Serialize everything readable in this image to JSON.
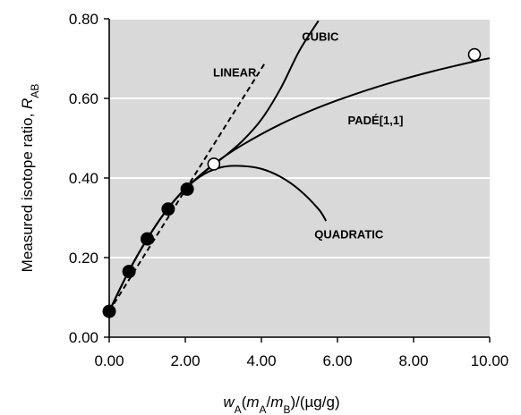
{
  "chart_data": {
    "type": "scatter",
    "title": "",
    "xlabel": {
      "parts": [
        {
          "text": "w",
          "italic": true
        },
        {
          "text": "A",
          "sub": true
        },
        {
          "text": "("
        },
        {
          "text": "m",
          "italic": true
        },
        {
          "text": "A",
          "sub": true
        },
        {
          "text": "/"
        },
        {
          "text": "m",
          "italic": true
        },
        {
          "text": "B",
          "sub": true
        },
        {
          "text": ")/(µg/g)"
        }
      ]
    },
    "ylabel": {
      "parts": [
        {
          "text": "Measured isotope ratio, "
        },
        {
          "text": "R",
          "italic": true
        },
        {
          "text": "AB",
          "sub": true
        }
      ]
    },
    "xlim": [
      0,
      10
    ],
    "ylim": [
      0,
      0.8
    ],
    "x_ticks": [
      "0.00",
      "2.00",
      "4.00",
      "6.00",
      "8.00",
      "10.00"
    ],
    "y_ticks": [
      "0.00",
      "0.20",
      "0.40",
      "0.60",
      "0.80"
    ],
    "x_tick_values": [
      0,
      2,
      4,
      6,
      8,
      10
    ],
    "y_tick_values": [
      0,
      0.2,
      0.4,
      0.6,
      0.8
    ],
    "grid": "horizontal",
    "background_color": "#d9d9d9",
    "points_filled": {
      "x": [
        0.0,
        0.52,
        1.0,
        1.55,
        2.05
      ],
      "y": [
        0.065,
        0.165,
        0.247,
        0.322,
        0.372
      ]
    },
    "points_open": {
      "x": [
        2.75,
        9.6
      ],
      "y": [
        0.435,
        0.71
      ]
    },
    "series": [
      {
        "name": "LINEAR",
        "style": "dashed",
        "x": [
          0.0,
          4.1
        ],
        "y": [
          0.065,
          0.69
        ]
      },
      {
        "name": "CUBIC",
        "style": "solid",
        "x": [
          0.0,
          0.5,
          1.0,
          1.5,
          2.0,
          2.5,
          3.0,
          3.5,
          4.0,
          4.5,
          5.0,
          5.5
        ],
        "y": [
          0.065,
          0.163,
          0.247,
          0.318,
          0.373,
          0.415,
          0.452,
          0.493,
          0.547,
          0.624,
          0.72,
          0.795
        ]
      },
      {
        "name": "PADÉ[1,1]",
        "style": "solid",
        "x": [
          0.0,
          0.5,
          1.0,
          1.5,
          2.0,
          2.75,
          3.5,
          4.5,
          5.5,
          6.5,
          7.5,
          8.5,
          9.6,
          10.0
        ],
        "y": [
          0.065,
          0.163,
          0.247,
          0.318,
          0.373,
          0.435,
          0.483,
          0.535,
          0.577,
          0.612,
          0.642,
          0.668,
          0.693,
          0.701
        ]
      },
      {
        "name": "QUADRATIC",
        "style": "solid",
        "x": [
          0.0,
          0.5,
          1.0,
          1.5,
          2.0,
          2.5,
          3.0,
          3.5,
          4.0,
          4.5,
          5.0,
          5.5,
          5.7
        ],
        "y": [
          0.065,
          0.163,
          0.247,
          0.318,
          0.373,
          0.41,
          0.428,
          0.43,
          0.423,
          0.403,
          0.37,
          0.322,
          0.292
        ]
      }
    ],
    "annotations": [
      {
        "text": "LINEAR",
        "x": 3.3,
        "y": 0.655
      },
      {
        "text": "CUBIC",
        "x": 5.55,
        "y": 0.745
      },
      {
        "text": "PADÉ[1,1]",
        "x": 7.0,
        "y": 0.535
      },
      {
        "text": "QUADRATIC",
        "x": 6.3,
        "y": 0.248
      }
    ]
  }
}
